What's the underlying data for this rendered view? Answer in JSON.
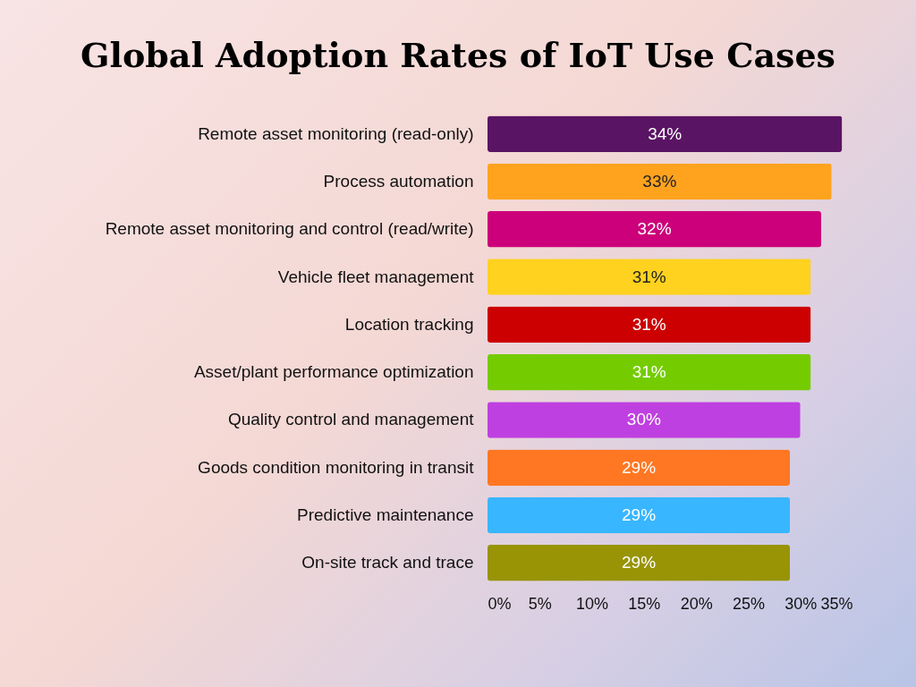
{
  "chart_data": {
    "type": "bar",
    "orientation": "horizontal",
    "title": "Global Adoption Rates of IoT Use Cases",
    "categories": [
      "Remote asset monitoring (read-only)",
      "Process automation",
      "Remote asset monitoring and control (read/write)",
      "Vehicle fleet management",
      "Location tracking",
      "Asset/plant performance optimization",
      "Quality control and management",
      "Goods condition monitoring in transit",
      "Predictive maintenance",
      "On-site track and trace"
    ],
    "values": [
      34,
      33,
      32,
      31,
      31,
      31,
      30,
      29,
      29,
      29
    ],
    "value_labels": [
      "34%",
      "33%",
      "32%",
      "31%",
      "31%",
      "31%",
      "30%",
      "29%",
      "29%",
      "29%"
    ],
    "colors": [
      "#5a1464",
      "#ffa31f",
      "#cc007a",
      "#ffd21f",
      "#cc0000",
      "#74cc00",
      "#bf40e0",
      "#ff7722",
      "#38b6ff",
      "#989406"
    ],
    "xlim": [
      0,
      35
    ],
    "xticks": [
      {
        "value": 0,
        "label": "0%"
      },
      {
        "value": 5,
        "label": "5%"
      },
      {
        "value": 10,
        "label": "10%"
      },
      {
        "value": 15,
        "label": "15%"
      },
      {
        "value": 20,
        "label": "20%"
      },
      {
        "value": 25,
        "label": "25%"
      },
      {
        "value": 30,
        "label": "30%"
      },
      {
        "value": 35,
        "label": "35%"
      }
    ],
    "grid": false
  }
}
